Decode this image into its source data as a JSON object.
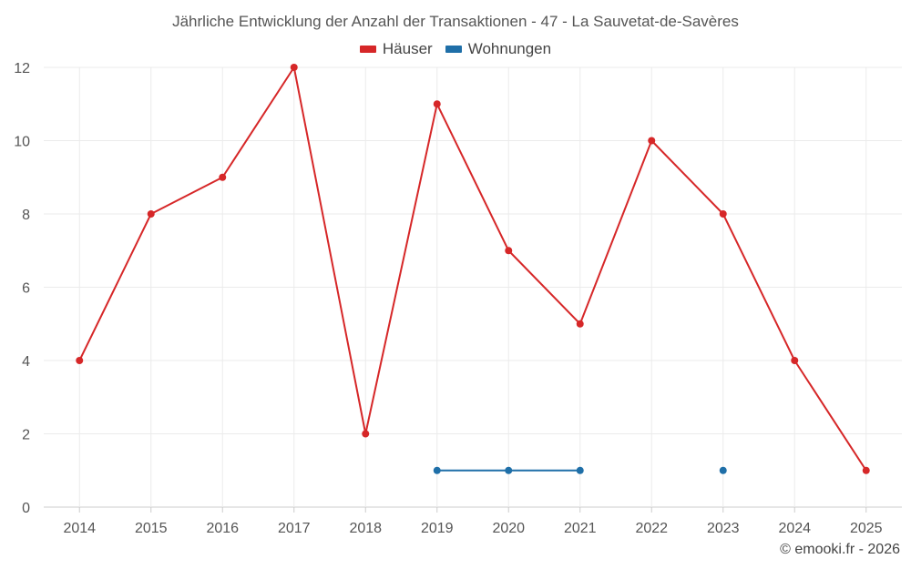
{
  "chart_data": {
    "type": "line",
    "title": "Jährliche Entwicklung der Anzahl der Transaktionen - 47 - La Sauvetat-de-Savères",
    "categories": [
      "2014",
      "2015",
      "2016",
      "2017",
      "2018",
      "2019",
      "2020",
      "2021",
      "2022",
      "2023",
      "2024",
      "2025"
    ],
    "series": [
      {
        "name": "Häuser",
        "color": "#d62728",
        "values": [
          4,
          8,
          9,
          12,
          2,
          11,
          7,
          5,
          10,
          8,
          4,
          1
        ]
      },
      {
        "name": "Wohnungen",
        "color": "#1f6fa8",
        "values": [
          null,
          null,
          null,
          null,
          null,
          1,
          1,
          1,
          null,
          1,
          null,
          null
        ]
      }
    ],
    "ylim": [
      0,
      12
    ],
    "yticks": [
      "0",
      "2",
      "4",
      "6",
      "8",
      "10",
      "12"
    ],
    "xlabel": "",
    "ylabel": "",
    "grid": true,
    "legend_position": "top-center"
  },
  "footer": {
    "copyright": "© emooki.fr - 2026"
  }
}
